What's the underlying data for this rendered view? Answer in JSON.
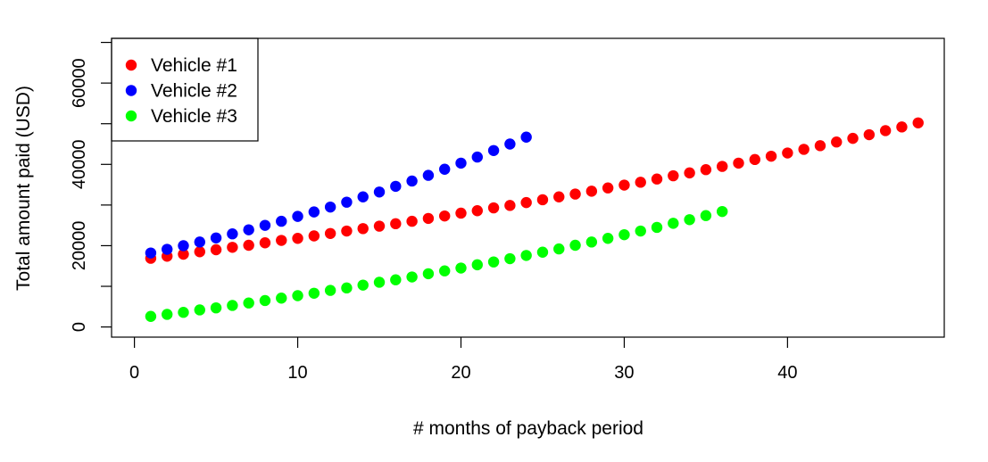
{
  "chart_data": {
    "type": "scatter",
    "title": "",
    "xlabel": "# months of payback period",
    "ylabel": "Total amount paid (USD)",
    "xlim": [
      -1.4,
      49.6
    ],
    "ylim": [
      -2500,
      71000
    ],
    "xticks": [
      0,
      10,
      20,
      30,
      40
    ],
    "yticks": [
      0,
      20000,
      40000,
      60000
    ],
    "yminor_ticks": [
      10000,
      30000,
      50000,
      70000
    ],
    "legend_position": "top-left",
    "grid": false,
    "series": [
      {
        "name": "Vehicle #1",
        "color": "#ff0000",
        "x": [
          1,
          2,
          3,
          4,
          5,
          6,
          7,
          8,
          9,
          10,
          11,
          12,
          13,
          14,
          15,
          16,
          17,
          18,
          19,
          20,
          21,
          22,
          23,
          24,
          25,
          26,
          27,
          28,
          29,
          30,
          31,
          32,
          33,
          34,
          35,
          36,
          37,
          38,
          39,
          40,
          41,
          42,
          43,
          44,
          45,
          46,
          47,
          48
        ],
        "y": [
          16900,
          17400,
          17900,
          18500,
          19000,
          19600,
          20100,
          20700,
          21300,
          21800,
          22400,
          23000,
          23600,
          24200,
          24800,
          25400,
          26000,
          26700,
          27300,
          28000,
          28600,
          29300,
          29900,
          30600,
          31300,
          32000,
          32700,
          33400,
          34200,
          34900,
          35600,
          36400,
          37200,
          37900,
          38700,
          39500,
          40300,
          41200,
          42000,
          42800,
          43700,
          44600,
          45500,
          46400,
          47300,
          48300,
          49200,
          50200
        ]
      },
      {
        "name": "Vehicle #2",
        "color": "#0000ff",
        "x": [
          1,
          2,
          3,
          4,
          5,
          6,
          7,
          8,
          9,
          10,
          11,
          12,
          13,
          14,
          15,
          16,
          17,
          18,
          19,
          20,
          21,
          22,
          23,
          24
        ],
        "y": [
          18200,
          19100,
          20000,
          20900,
          21900,
          22900,
          23900,
          25000,
          26000,
          27200,
          28300,
          29500,
          30700,
          32000,
          33200,
          34600,
          35900,
          37300,
          38800,
          40300,
          41800,
          43400,
          45000,
          46700
        ]
      },
      {
        "name": "Vehicle #3",
        "color": "#00ff00",
        "x": [
          1,
          2,
          3,
          4,
          5,
          6,
          7,
          8,
          9,
          10,
          11,
          12,
          13,
          14,
          15,
          16,
          17,
          18,
          19,
          20,
          21,
          22,
          23,
          24,
          25,
          26,
          27,
          28,
          29,
          30,
          31,
          32,
          33,
          34,
          35,
          36
        ],
        "y": [
          2600,
          3100,
          3600,
          4200,
          4700,
          5300,
          5900,
          6500,
          7100,
          7700,
          8300,
          9000,
          9600,
          10300,
          11000,
          11600,
          12300,
          13100,
          13800,
          14500,
          15300,
          16000,
          16800,
          17600,
          18400,
          19200,
          20100,
          20900,
          21800,
          22700,
          23600,
          24500,
          25500,
          26400,
          27400,
          28400
        ]
      }
    ]
  }
}
